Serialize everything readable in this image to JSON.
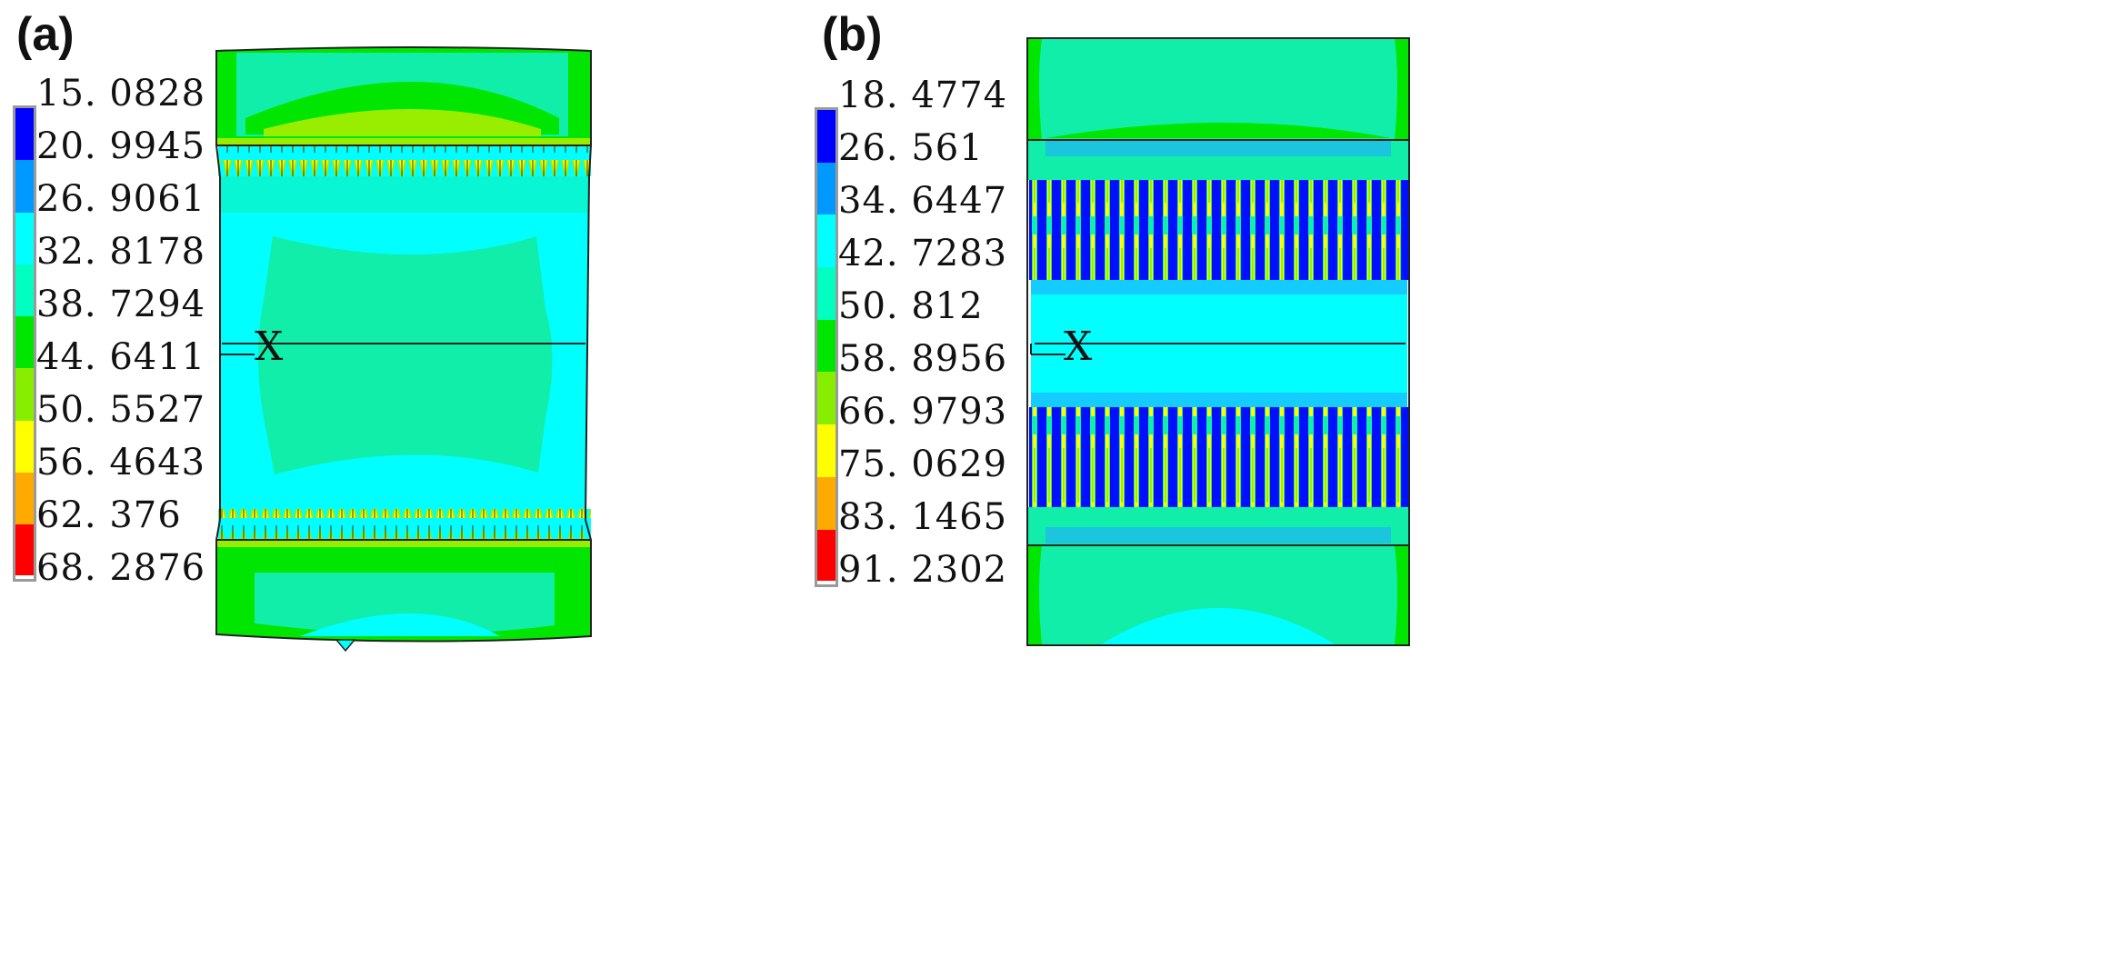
{
  "panels": [
    {
      "label": "(a)",
      "legend_values": [
        "15. 0828",
        "20. 9945",
        "26. 9061",
        "32. 8178",
        "38. 7294",
        "44. 6411",
        "50. 5527",
        "56. 4643",
        "62. 376",
        "68. 2876"
      ],
      "axis_label": "X"
    },
    {
      "label": "(b)",
      "legend_values": [
        "18. 4774",
        "26. 561",
        "34. 6447",
        "42. 7283",
        "50. 812",
        "58. 8956",
        "66. 9793",
        "75. 0629",
        "83. 1465",
        "91. 2302"
      ],
      "axis_label": "X"
    }
  ],
  "legend_colors": [
    "#0000ff",
    "#0099ff",
    "#00ffff",
    "#00ffc0",
    "#00e600",
    "#88ee00",
    "#ffff00",
    "#ffaa00",
    "#ff0000"
  ],
  "contour_colors": {
    "blue": "#0010ff",
    "light_blue": "#22aaff",
    "cyan": "#00ffff",
    "teal": "#11eeaa",
    "green": "#00e600",
    "yellow_green": "#99ee00",
    "yellow": "#ffff00",
    "orange": "#ffaa00"
  }
}
